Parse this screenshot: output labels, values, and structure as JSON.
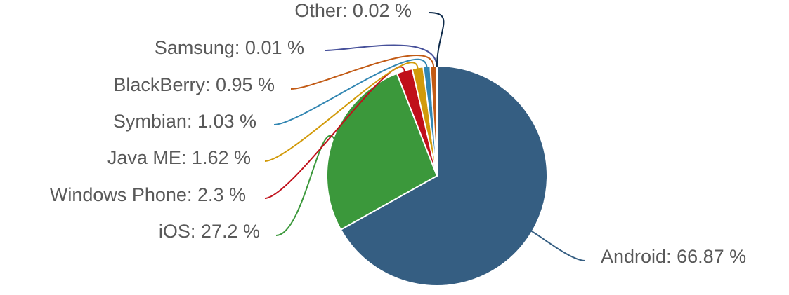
{
  "chart_data": {
    "type": "pie",
    "title": "",
    "unit": "%",
    "slices": [
      {
        "name": "Android",
        "value": 66.87,
        "label": "Android: 66.87 %",
        "color": "#355e82"
      },
      {
        "name": "iOS",
        "value": 27.2,
        "label": "iOS: 27.2 %",
        "color": "#3b983b"
      },
      {
        "name": "Windows Phone",
        "value": 2.3,
        "label": "Windows Phone: 2.3 %",
        "color": "#c0101a"
      },
      {
        "name": "Java ME",
        "value": 1.62,
        "label": "Java ME: 1.62 %",
        "color": "#d29a0a"
      },
      {
        "name": "Symbian",
        "value": 1.03,
        "label": "Symbian: 1.03 %",
        "color": "#3286b2"
      },
      {
        "name": "BlackBerry",
        "value": 0.95,
        "label": "BlackBerry: 0.95 %",
        "color": "#c25a14"
      },
      {
        "name": "Samsung",
        "value": 0.01,
        "label": "Samsung: 0.01 %",
        "color": "#46509a"
      },
      {
        "name": "Other",
        "value": 0.02,
        "label": "Other: 0.02 %",
        "color": "#0e2a4a"
      }
    ]
  }
}
